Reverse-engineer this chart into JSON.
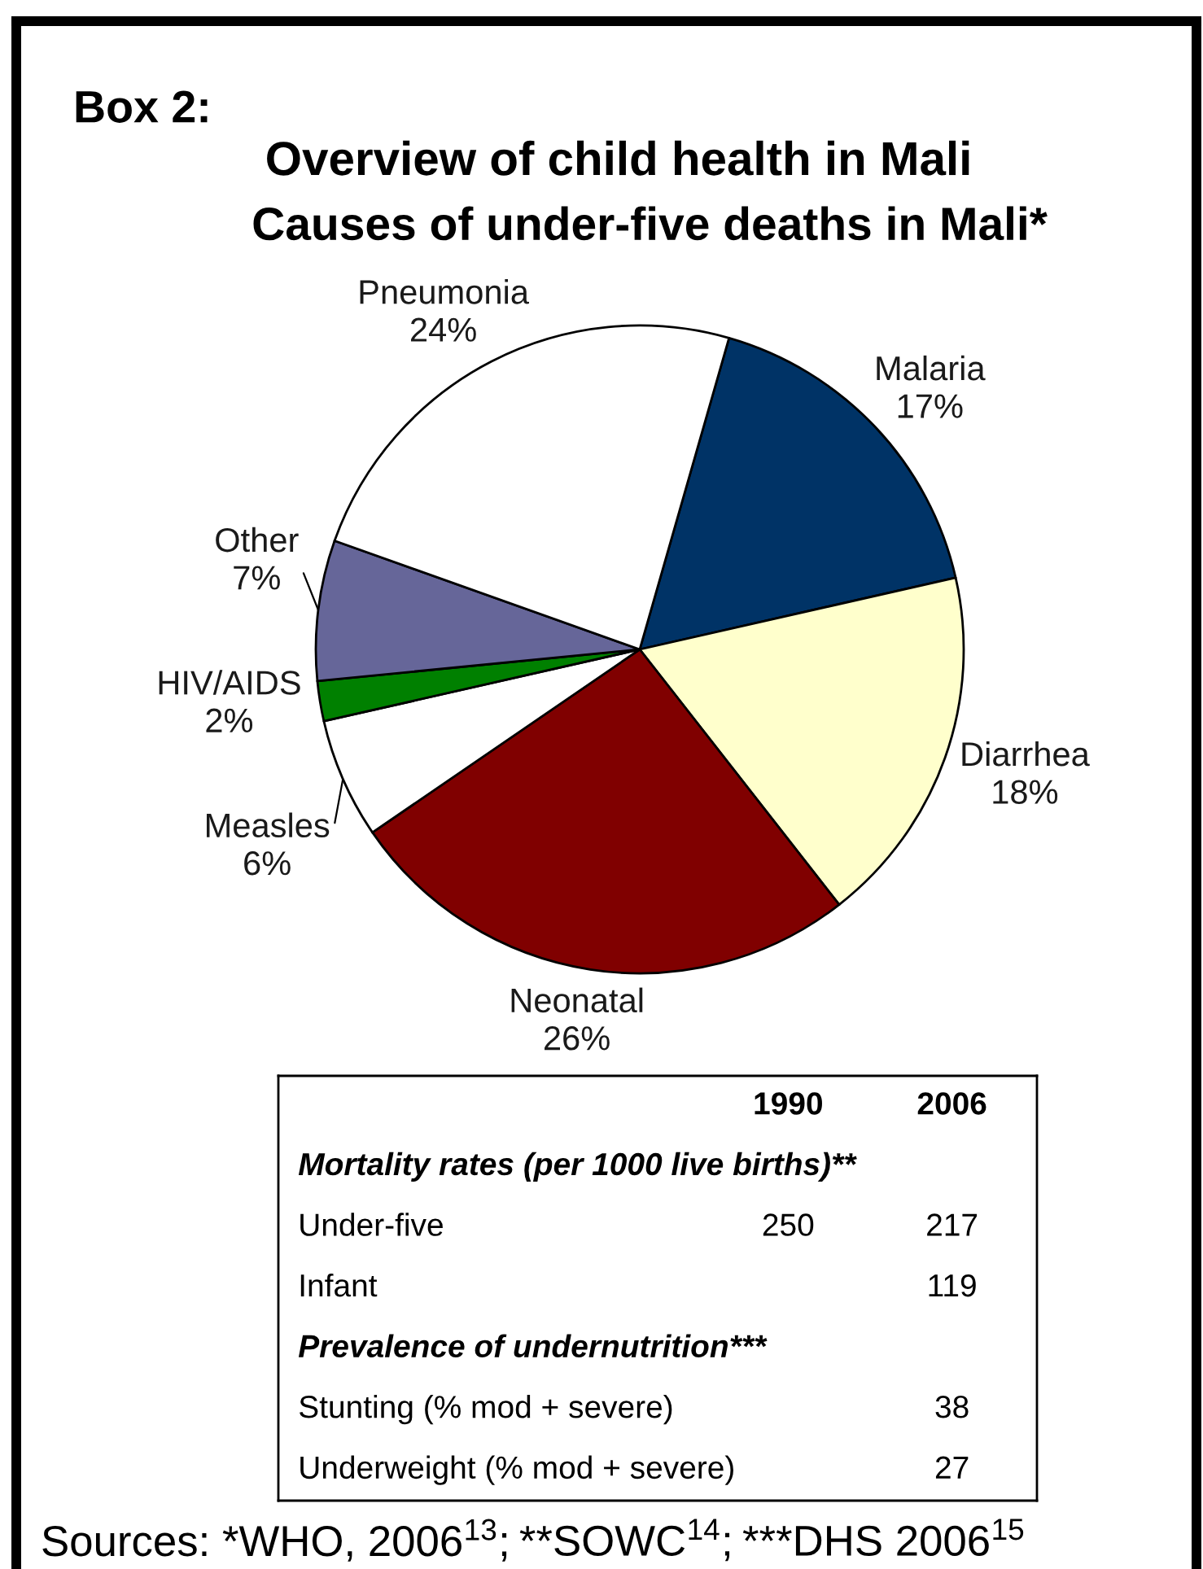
{
  "chart_data": [
    {
      "type": "pie",
      "title": "Overview of child health in Mali",
      "subtitle": "Causes of under-five deaths in Mali*",
      "categories": [
        "Malaria",
        "Diarrhea",
        "Neonatal",
        "Measles",
        "HIV/AIDS",
        "Other",
        "Pneumonia"
      ],
      "values": [
        17,
        18,
        26,
        6,
        2,
        7,
        24
      ],
      "value_labels": [
        "17%",
        "18%",
        "26%",
        "6%",
        "2%",
        "7%",
        "24%"
      ],
      "colors": [
        "#003366",
        "#ffffcc",
        "#800000",
        "#ffffff",
        "#008000",
        "#666699",
        "#ffffff"
      ],
      "annotations": [
        "Box 2:",
        "Sources: *WHO, 2006$^{13}$;",
        "**SOWC$^{14}$;",
        "***DHS 2006$^{15}$"
      ]
    },
    {
      "type": "other",
      "categories": [
        "1990",
        "2006"
      ],
      "y_categories": [
        "Mortality rates (per 1000 live births)**",
        "Under-five",
        "Infant",
        "Prevalence of undernutrition***",
        "Stunting (% mod + severe)",
        "Underweight (% mod + severe)"
      ],
      "cell_labels": [
        [
          null,
          null
        ],
        [
          "250",
          "217"
        ],
        [
          null,
          "119"
        ],
        [
          null,
          null
        ],
        [
          null,
          "38"
        ],
        [
          null,
          "27"
        ]
      ]
    }
  ]
}
